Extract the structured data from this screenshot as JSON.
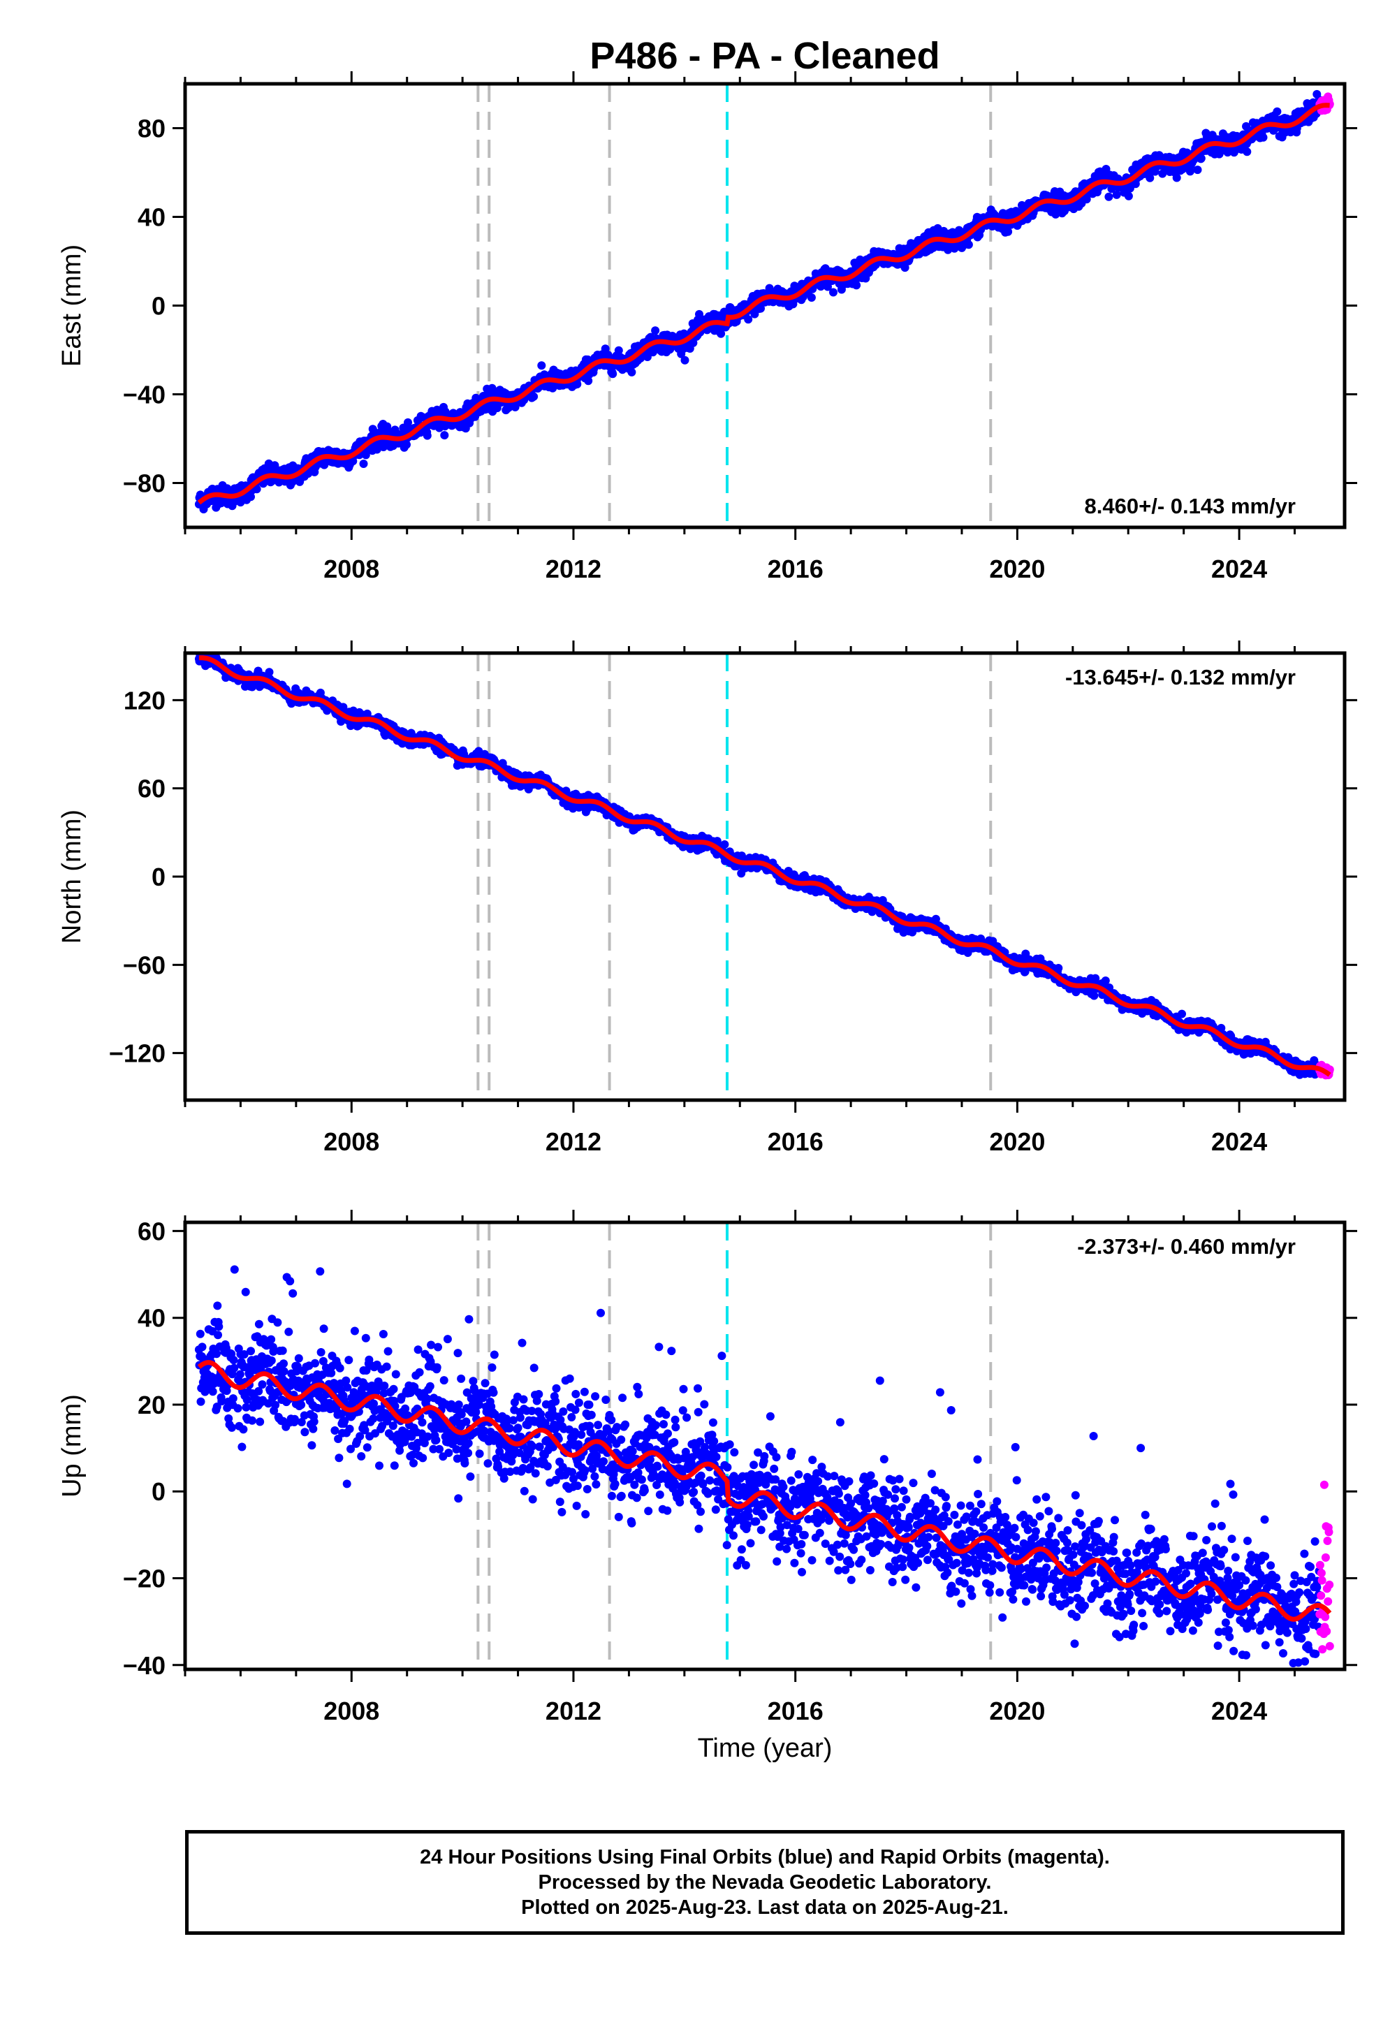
{
  "chart_data": {
    "type": "scatter",
    "title": "P486  - PA - Cleaned",
    "xlabel": "Time (year)",
    "x_range": [
      2005.0,
      2025.9
    ],
    "x_ticks": [
      "2008",
      "2012",
      "2016",
      "2020",
      "2024"
    ],
    "x_tick_values": [
      2008,
      2012,
      2016,
      2020,
      2024
    ],
    "reference_lines": [
      {
        "year": 2010.28,
        "color": "#bbbbbb",
        "style": "dashed"
      },
      {
        "year": 2010.48,
        "color": "#bbbbbb",
        "style": "dashed"
      },
      {
        "year": 2012.65,
        "color": "#bbbbbb",
        "style": "dashed"
      },
      {
        "year": 2014.77,
        "color": "#00e5ee",
        "style": "dashed"
      },
      {
        "year": 2019.52,
        "color": "#bbbbbb",
        "style": "dashed"
      }
    ],
    "series_colors": {
      "final_orbits": "#0000ff",
      "rapid_orbits": "#ff00ff",
      "model_fit": "#ff0000"
    },
    "data_start": 2005.25,
    "data_end": 2025.64,
    "rapid_start": 2025.45,
    "panels": [
      {
        "component": "east",
        "ylabel": "East (mm)",
        "y_range": [
          -100,
          100
        ],
        "y_ticks": [
          "80",
          "40",
          "0",
          "−40",
          "−80"
        ],
        "y_tick_values": [
          80,
          40,
          0,
          -40,
          -80
        ],
        "rate_text": "8.460+/- 0.143 mm/yr",
        "rate_position": "bottom-right",
        "rate_mm_per_yr": 8.46,
        "start_value": -88,
        "end_value": 88,
        "annual_amplitude": 2.0,
        "scatter": 2.2,
        "offset_at_2014_77": 3.0
      },
      {
        "component": "north",
        "ylabel": "North (mm)",
        "y_range": [
          -152,
          152
        ],
        "y_ticks": [
          "120",
          "60",
          "0",
          "−60",
          "−120"
        ],
        "y_tick_values": [
          120,
          60,
          0,
          -60,
          -120
        ],
        "rate_text": "-13.645+/- 0.132 mm/yr",
        "rate_position": "top-right",
        "rate_mm_per_yr": -13.645,
        "start_value": 148,
        "end_value": -136,
        "annual_amplitude": 2.5,
        "scatter": 2.2,
        "offset_at_2014_77": 0
      },
      {
        "component": "up",
        "ylabel": "Up (mm)",
        "y_range": [
          -41,
          62
        ],
        "y_ticks": [
          "60",
          "40",
          "20",
          "0",
          "−20",
          "−40"
        ],
        "y_tick_values": [
          60,
          40,
          20,
          0,
          -20,
          -40
        ],
        "rate_text": "-2.373+/- 0.460 mm/yr",
        "rate_position": "top-right",
        "rate_mm_per_yr": -2.373,
        "start_value": 26,
        "end_value": -27,
        "annual_amplitude": 2.2,
        "scatter": 5.5,
        "offset_at_2014_77": -4.0
      }
    ]
  },
  "footer": {
    "line1": "24 Hour Positions Using Final Orbits (blue) and Rapid Orbits (magenta).",
    "line2": "Processed by the Nevada Geodetic Laboratory.",
    "line3": "Plotted on 2025-Aug-23. Last data on 2025-Aug-21."
  }
}
